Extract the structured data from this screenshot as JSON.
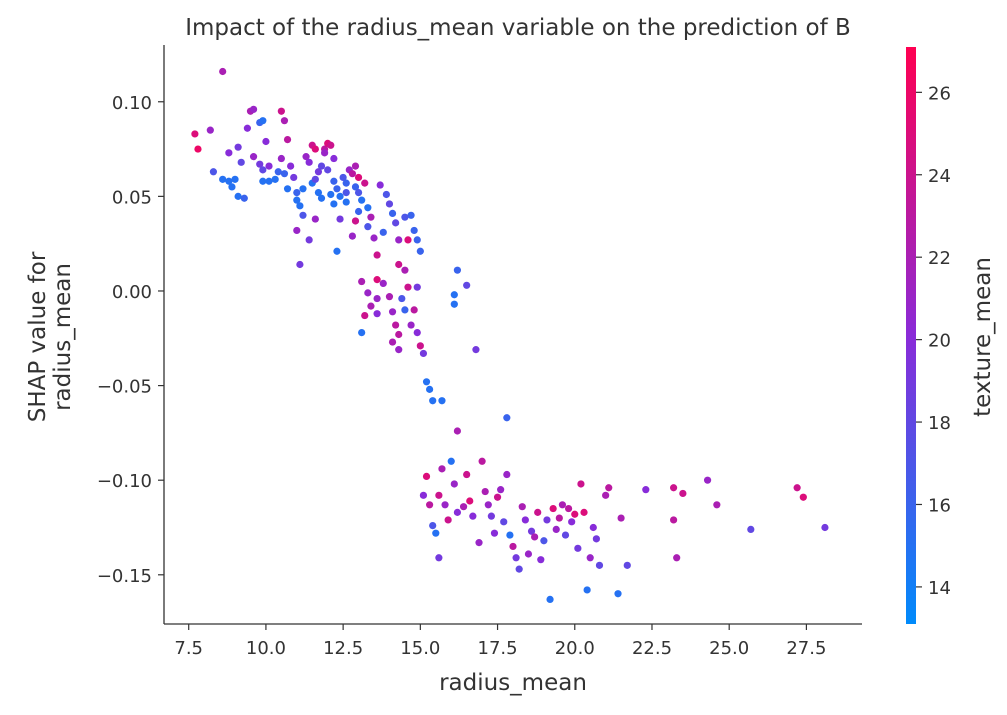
{
  "chart_data": {
    "type": "scatter",
    "title": "Impact of the radius_mean variable on the prediction of B",
    "xlabel": "radius_mean",
    "ylabel_lines": [
      "SHAP value for",
      "radius_mean"
    ],
    "xlim": [
      6.7,
      29.3
    ],
    "ylim": [
      -0.176,
      0.13
    ],
    "xticks": [
      7.5,
      10.0,
      12.5,
      15.0,
      17.5,
      20.0,
      22.5,
      25.0,
      27.5
    ],
    "xtick_labels": [
      "7.5",
      "10.0",
      "12.5",
      "15.0",
      "17.5",
      "20.0",
      "22.5",
      "25.0",
      "27.5"
    ],
    "yticks": [
      0.1,
      0.05,
      0.0,
      -0.05,
      -0.1,
      -0.15
    ],
    "ytick_labels": [
      "0.10",
      "0.05",
      "0.00",
      "−0.05",
      "−0.10",
      "−0.15"
    ],
    "colorbar": {
      "label": "texture_mean",
      "range": [
        13.1,
        27.1
      ],
      "ticks": [
        14,
        16,
        18,
        20,
        22,
        24,
        26
      ],
      "tick_labels": [
        "14",
        "16",
        "18",
        "20",
        "22",
        "24",
        "26"
      ],
      "colors": [
        "#008bfb",
        "#ff0051"
      ]
    },
    "points": [
      [
        8.6,
        0.116,
        22
      ],
      [
        7.7,
        0.083,
        25
      ],
      [
        7.8,
        0.075,
        26
      ],
      [
        8.2,
        0.085,
        21
      ],
      [
        8.3,
        0.063,
        17
      ],
      [
        8.6,
        0.059,
        15
      ],
      [
        8.8,
        0.058,
        15
      ],
      [
        9.0,
        0.059,
        15
      ],
      [
        8.9,
        0.055,
        15
      ],
      [
        9.1,
        0.05,
        15
      ],
      [
        9.3,
        0.049,
        16
      ],
      [
        8.8,
        0.073,
        20
      ],
      [
        9.1,
        0.076,
        19
      ],
      [
        9.2,
        0.068,
        18
      ],
      [
        9.4,
        0.086,
        20
      ],
      [
        9.5,
        0.095,
        22
      ],
      [
        9.6,
        0.096,
        21
      ],
      [
        9.8,
        0.089,
        16
      ],
      [
        9.9,
        0.09,
        15
      ],
      [
        9.6,
        0.071,
        21
      ],
      [
        9.8,
        0.067,
        19
      ],
      [
        9.9,
        0.064,
        18
      ],
      [
        10.0,
        0.079,
        20
      ],
      [
        10.1,
        0.066,
        20
      ],
      [
        9.9,
        0.058,
        15
      ],
      [
        10.1,
        0.058,
        15
      ],
      [
        10.3,
        0.059,
        15
      ],
      [
        10.5,
        0.095,
        24
      ],
      [
        10.6,
        0.09,
        22
      ],
      [
        10.7,
        0.08,
        23
      ],
      [
        10.5,
        0.07,
        21
      ],
      [
        10.6,
        0.062,
        16
      ],
      [
        10.8,
        0.066,
        20
      ],
      [
        10.9,
        0.06,
        19
      ],
      [
        11.0,
        0.052,
        16
      ],
      [
        11.0,
        0.048,
        15
      ],
      [
        11.1,
        0.045,
        15
      ],
      [
        11.2,
        0.04,
        17
      ],
      [
        11.0,
        0.032,
        21
      ],
      [
        11.1,
        0.014,
        19
      ],
      [
        11.3,
        0.071,
        21
      ],
      [
        11.4,
        0.068,
        20
      ],
      [
        11.5,
        0.077,
        24
      ],
      [
        11.6,
        0.075,
        25
      ],
      [
        11.7,
        0.063,
        19
      ],
      [
        11.8,
        0.066,
        18
      ],
      [
        11.5,
        0.057,
        15
      ],
      [
        11.7,
        0.052,
        15
      ],
      [
        11.8,
        0.049,
        15
      ],
      [
        11.6,
        0.038,
        21
      ],
      [
        11.4,
        0.027,
        19
      ],
      [
        11.9,
        0.075,
        23
      ],
      [
        12.0,
        0.078,
        25
      ],
      [
        12.1,
        0.077,
        24
      ],
      [
        12.2,
        0.07,
        20
      ],
      [
        12.0,
        0.064,
        18
      ],
      [
        12.2,
        0.058,
        16
      ],
      [
        12.3,
        0.054,
        16
      ],
      [
        12.4,
        0.05,
        15
      ],
      [
        12.2,
        0.046,
        15
      ],
      [
        12.5,
        0.06,
        17
      ],
      [
        12.6,
        0.057,
        16
      ],
      [
        12.4,
        0.038,
        19
      ],
      [
        12.3,
        0.021,
        15
      ],
      [
        12.7,
        0.064,
        21
      ],
      [
        12.8,
        0.062,
        23
      ],
      [
        12.9,
        0.055,
        16
      ],
      [
        13.0,
        0.052,
        17
      ],
      [
        13.1,
        0.048,
        15
      ],
      [
        13.0,
        0.042,
        16
      ],
      [
        12.9,
        0.037,
        24
      ],
      [
        12.8,
        0.029,
        21
      ],
      [
        13.0,
        0.06,
        25
      ],
      [
        13.2,
        0.057,
        24
      ],
      [
        13.3,
        0.044,
        15
      ],
      [
        13.4,
        0.039,
        22
      ],
      [
        13.3,
        0.034,
        17
      ],
      [
        13.5,
        0.028,
        21
      ],
      [
        13.6,
        0.019,
        24
      ],
      [
        13.1,
        0.005,
        22
      ],
      [
        13.3,
        -0.001,
        21
      ],
      [
        13.4,
        -0.008,
        22
      ],
      [
        13.2,
        -0.013,
        24
      ],
      [
        13.6,
        -0.012,
        20
      ],
      [
        13.1,
        -0.022,
        15
      ],
      [
        13.6,
        0.006,
        25
      ],
      [
        13.8,
        0.004,
        21
      ],
      [
        13.7,
        0.056,
        20
      ],
      [
        13.9,
        0.051,
        17
      ],
      [
        14.0,
        0.046,
        18
      ],
      [
        14.1,
        0.041,
        16
      ],
      [
        14.2,
        0.036,
        18
      ],
      [
        14.3,
        0.027,
        21
      ],
      [
        14.0,
        -0.003,
        22
      ],
      [
        14.1,
        -0.011,
        21
      ],
      [
        14.2,
        -0.018,
        23
      ],
      [
        14.3,
        -0.023,
        23
      ],
      [
        14.1,
        -0.027,
        22
      ],
      [
        14.3,
        -0.031,
        21
      ],
      [
        14.4,
        -0.004,
        17
      ],
      [
        14.5,
        -0.01,
        16
      ],
      [
        14.6,
        0.002,
        24
      ],
      [
        14.7,
        0.04,
        16
      ],
      [
        14.8,
        0.032,
        16
      ],
      [
        14.9,
        0.027,
        16
      ],
      [
        15.0,
        0.021,
        16
      ],
      [
        14.6,
        0.027,
        25
      ],
      [
        14.9,
        0.002,
        19
      ],
      [
        14.8,
        -0.01,
        23
      ],
      [
        14.7,
        -0.018,
        21
      ],
      [
        14.9,
        -0.022,
        20
      ],
      [
        15.0,
        -0.029,
        24
      ],
      [
        15.1,
        -0.033,
        19
      ],
      [
        15.2,
        -0.048,
        15
      ],
      [
        15.3,
        -0.052,
        15
      ],
      [
        15.4,
        -0.058,
        15
      ],
      [
        15.7,
        -0.058,
        15
      ],
      [
        16.1,
        -0.002,
        15
      ],
      [
        16.2,
        0.011,
        16
      ],
      [
        16.1,
        -0.007,
        15
      ],
      [
        16.2,
        -0.074,
        22
      ],
      [
        16.5,
        0.003,
        18
      ],
      [
        16.8,
        -0.031,
        19
      ],
      [
        17.8,
        -0.067,
        16
      ],
      [
        15.1,
        -0.108,
        20
      ],
      [
        15.2,
        -0.098,
        25
      ],
      [
        15.3,
        -0.113,
        23
      ],
      [
        15.4,
        -0.124,
        17
      ],
      [
        15.5,
        -0.128,
        15
      ],
      [
        15.6,
        -0.108,
        24
      ],
      [
        15.7,
        -0.094,
        22
      ],
      [
        15.6,
        -0.141,
        19
      ],
      [
        15.8,
        -0.113,
        21
      ],
      [
        15.9,
        -0.121,
        24
      ],
      [
        16.0,
        -0.09,
        15
      ],
      [
        16.1,
        -0.102,
        21
      ],
      [
        16.2,
        -0.117,
        20
      ],
      [
        16.4,
        -0.114,
        22
      ],
      [
        16.5,
        -0.097,
        24
      ],
      [
        16.6,
        -0.111,
        25
      ],
      [
        16.7,
        -0.119,
        20
      ],
      [
        16.9,
        -0.133,
        21
      ],
      [
        17.0,
        -0.09,
        23
      ],
      [
        17.1,
        -0.106,
        22
      ],
      [
        17.2,
        -0.113,
        21
      ],
      [
        17.3,
        -0.119,
        19
      ],
      [
        17.4,
        -0.128,
        20
      ],
      [
        17.5,
        -0.109,
        24
      ],
      [
        17.6,
        -0.105,
        21
      ],
      [
        17.7,
        -0.122,
        18
      ],
      [
        17.8,
        -0.097,
        21
      ],
      [
        17.9,
        -0.129,
        15
      ],
      [
        18.0,
        -0.135,
        23
      ],
      [
        18.1,
        -0.141,
        19
      ],
      [
        18.2,
        -0.147,
        18
      ],
      [
        18.3,
        -0.114,
        22
      ],
      [
        18.4,
        -0.121,
        20
      ],
      [
        18.5,
        -0.139,
        21
      ],
      [
        18.6,
        -0.127,
        19
      ],
      [
        18.7,
        -0.13,
        22
      ],
      [
        18.8,
        -0.117,
        24
      ],
      [
        18.9,
        -0.142,
        20
      ],
      [
        19.0,
        -0.132,
        17
      ],
      [
        19.1,
        -0.121,
        19
      ],
      [
        19.2,
        -0.163,
        15
      ],
      [
        19.3,
        -0.115,
        25
      ],
      [
        19.4,
        -0.126,
        21
      ],
      [
        19.5,
        -0.12,
        23
      ],
      [
        19.6,
        -0.113,
        22
      ],
      [
        19.7,
        -0.129,
        18
      ],
      [
        19.8,
        -0.115,
        23
      ],
      [
        19.9,
        -0.122,
        20
      ],
      [
        20.0,
        -0.118,
        25
      ],
      [
        20.1,
        -0.136,
        19
      ],
      [
        20.2,
        -0.102,
        24
      ],
      [
        20.3,
        -0.117,
        25
      ],
      [
        20.4,
        -0.158,
        15
      ],
      [
        20.5,
        -0.141,
        21
      ],
      [
        20.6,
        -0.125,
        20
      ],
      [
        20.7,
        -0.131,
        19
      ],
      [
        20.8,
        -0.145,
        18
      ],
      [
        21.0,
        -0.108,
        22
      ],
      [
        21.1,
        -0.104,
        23
      ],
      [
        21.4,
        -0.16,
        15
      ],
      [
        21.5,
        -0.12,
        22
      ],
      [
        21.7,
        -0.145,
        18
      ],
      [
        22.3,
        -0.105,
        20
      ],
      [
        23.2,
        -0.104,
        24
      ],
      [
        23.2,
        -0.121,
        23
      ],
      [
        23.3,
        -0.141,
        22
      ],
      [
        23.5,
        -0.107,
        24
      ],
      [
        24.3,
        -0.1,
        21
      ],
      [
        24.6,
        -0.113,
        22
      ],
      [
        25.7,
        -0.126,
        18
      ],
      [
        27.2,
        -0.104,
        24
      ],
      [
        27.4,
        -0.109,
        25
      ],
      [
        28.1,
        -0.125,
        19
      ],
      [
        14.3,
        0.014,
        24
      ],
      [
        14.5,
        0.011,
        22
      ],
      [
        13.6,
        -0.004,
        21
      ],
      [
        12.1,
        0.051,
        15
      ],
      [
        11.2,
        0.054,
        15
      ],
      [
        10.7,
        0.054,
        15
      ],
      [
        12.6,
        0.047,
        15
      ],
      [
        13.8,
        0.031,
        16
      ],
      [
        14.5,
        0.039,
        17
      ],
      [
        12.9,
        0.066,
        22
      ],
      [
        11.9,
        0.073,
        21
      ],
      [
        10.4,
        0.063,
        16
      ],
      [
        11.6,
        0.059,
        18
      ],
      [
        12.6,
        0.052,
        17
      ]
    ]
  }
}
